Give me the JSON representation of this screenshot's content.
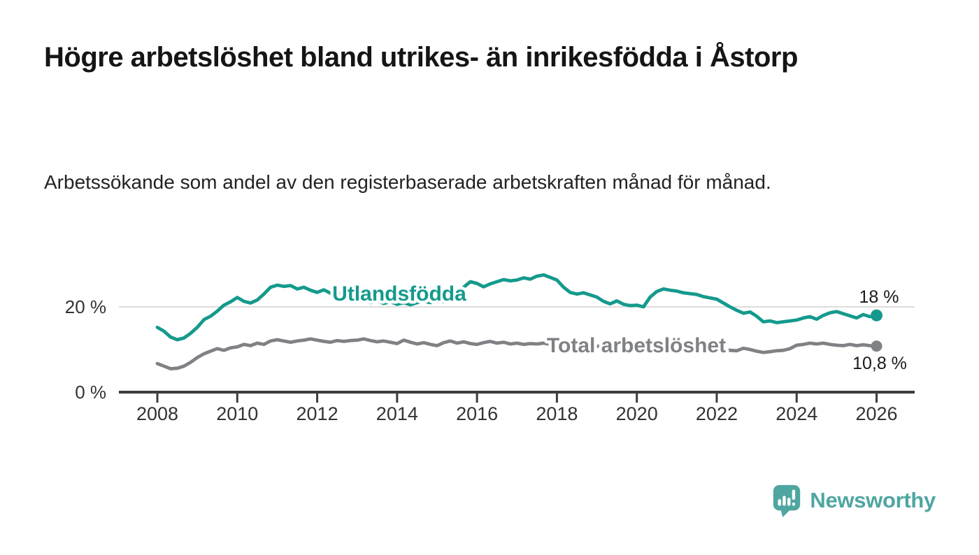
{
  "header": {
    "title": "Högre arbetslöshet bland utrikes- än inrikesfödda i Åstorp",
    "subtitle": "Arbetssökande som andel av den registerbaserade arbetskraften månad för månad."
  },
  "footer": {
    "brand_name": "Newsworthy",
    "brand_color": "#4FA6A1",
    "brand_icon": "bar-chart-speech-bubble"
  },
  "colors": {
    "series_utlandsfodda": "#149A8C",
    "series_total": "#7F8184",
    "axis": "#3C3C3C",
    "tick_text": "#333333",
    "grid": "#DCDCDC",
    "value_label_text": "#1A1A1A",
    "background": "#FFFFFF"
  },
  "chart_data": {
    "type": "line",
    "title": "Högre arbetslöshet bland utrikes- än inrikesfödda i Åstorp",
    "subtitle": "Arbetssökande som andel av den registerbaserade arbetskraften månad för månad.",
    "x_unit": "decimal_year",
    "x_start": 2008.0,
    "x_step_months": 2,
    "x_end": 2026.0,
    "xlim": [
      2007.05,
      2028.6
    ],
    "ylim": [
      0,
      29.5
    ],
    "grid": "horizontal-at-y-ticks",
    "legend": "inline-labels",
    "x_ticks": [
      2008,
      2010,
      2012,
      2014,
      2016,
      2018,
      2020,
      2022,
      2024,
      2026
    ],
    "y_ticks": [
      {
        "value": 0,
        "label": "0 %"
      },
      {
        "value": 20,
        "label": "20 %"
      }
    ],
    "series": [
      {
        "name": "Utlandsfödda",
        "color": "#149A8C",
        "end_value": 18,
        "end_label": "18 %",
        "values": [
          15.2,
          14.3,
          12.9,
          12.3,
          12.7,
          13.8,
          15.2,
          17.0,
          17.8,
          19.0,
          20.4,
          21.2,
          22.2,
          21.3,
          20.9,
          21.6,
          23.0,
          24.6,
          25.1,
          24.8,
          25.0,
          24.2,
          24.6,
          23.9,
          23.4,
          24.0,
          23.2,
          23.5,
          22.8,
          23.2,
          22.6,
          21.6,
          21.0,
          21.4,
          20.8,
          21.2,
          20.6,
          21.0,
          20.5,
          21.0,
          21.3,
          21.0,
          21.6,
          21.2,
          22.0,
          23.2,
          24.6,
          25.9,
          25.5,
          24.7,
          25.4,
          25.9,
          26.4,
          26.1,
          26.3,
          26.8,
          26.5,
          27.2,
          27.5,
          26.9,
          26.3,
          24.6,
          23.4,
          23.0,
          23.3,
          22.8,
          22.3,
          21.3,
          20.7,
          21.4,
          20.6,
          20.3,
          20.4,
          20.0,
          22.3,
          23.6,
          24.2,
          23.9,
          23.7,
          23.3,
          23.1,
          22.9,
          22.4,
          22.1,
          21.8,
          20.9,
          20.0,
          19.2,
          18.5,
          18.8,
          17.8,
          16.5,
          16.7,
          16.3,
          16.5,
          16.7,
          16.9,
          17.4,
          17.7,
          17.1,
          18.0,
          18.6,
          18.9,
          18.4,
          17.9,
          17.4,
          18.2,
          17.7,
          18.0
        ]
      },
      {
        "name": "Total arbetslöshet",
        "color": "#7F8184",
        "end_value": 10.8,
        "end_label": "10,8 %",
        "values": [
          6.7,
          6.1,
          5.5,
          5.6,
          6.1,
          7.0,
          8.1,
          9.0,
          9.6,
          10.2,
          9.8,
          10.4,
          10.6,
          11.2,
          10.9,
          11.5,
          11.2,
          12.0,
          12.3,
          12.0,
          11.7,
          12.0,
          12.2,
          12.5,
          12.2,
          11.9,
          11.7,
          12.1,
          11.9,
          12.1,
          12.2,
          12.5,
          12.1,
          11.8,
          12.0,
          11.7,
          11.4,
          12.2,
          11.7,
          11.3,
          11.6,
          11.2,
          10.9,
          11.6,
          12.0,
          11.5,
          11.8,
          11.4,
          11.2,
          11.6,
          11.9,
          11.5,
          11.7,
          11.3,
          11.5,
          11.2,
          11.4,
          11.3,
          11.5,
          11.2,
          11.0,
          10.8,
          11.0,
          10.9,
          11.1,
          10.9,
          10.8,
          10.6,
          10.8,
          10.7,
          10.9,
          11.0,
          10.9,
          11.2,
          11.8,
          12.0,
          11.8,
          11.6,
          11.4,
          11.2,
          11.0,
          10.8,
          10.6,
          10.4,
          10.2,
          10.0,
          9.8,
          9.7,
          10.3,
          10.0,
          9.6,
          9.3,
          9.5,
          9.7,
          9.8,
          10.2,
          11.0,
          11.2,
          11.5,
          11.3,
          11.5,
          11.2,
          11.0,
          10.9,
          11.2,
          10.9,
          11.1,
          10.9,
          10.8
        ]
      }
    ]
  }
}
